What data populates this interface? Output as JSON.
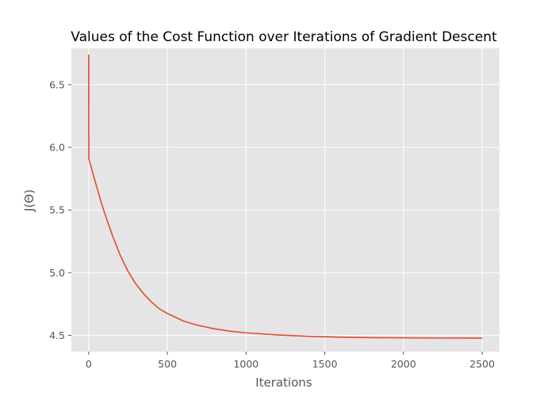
{
  "chart_data": {
    "type": "line",
    "title": "Values of the Cost Function over Iterations of Gradient Descent",
    "xlabel": "Iterations",
    "ylabel": "J(Θ)",
    "xlim": [
      -110,
      2610
    ],
    "ylim": [
      4.37,
      6.79
    ],
    "xticks": [
      0,
      500,
      1000,
      1500,
      2000,
      2500
    ],
    "yticks": [
      4.5,
      5.0,
      5.5,
      6.0,
      6.5
    ],
    "grid": true,
    "background": "#e5e5e5",
    "grid_color": "#ffffff",
    "line_color": "#e24a33",
    "series": [
      {
        "x": [
          0,
          1,
          2,
          3,
          5,
          10,
          25,
          50,
          75,
          100,
          150,
          200,
          250,
          300,
          350,
          400,
          450,
          500,
          600,
          700,
          800,
          900,
          1000,
          1200,
          1400,
          1600,
          1800,
          2000,
          2200,
          2500
        ],
        "values": [
          6.74,
          5.92,
          5.905,
          5.9,
          5.89,
          5.87,
          5.8,
          5.69,
          5.58,
          5.48,
          5.3,
          5.14,
          5.01,
          4.91,
          4.83,
          4.765,
          4.71,
          4.675,
          4.615,
          4.578,
          4.552,
          4.533,
          4.52,
          4.503,
          4.492,
          4.486,
          4.482,
          4.48,
          4.479,
          4.478
        ]
      }
    ]
  }
}
